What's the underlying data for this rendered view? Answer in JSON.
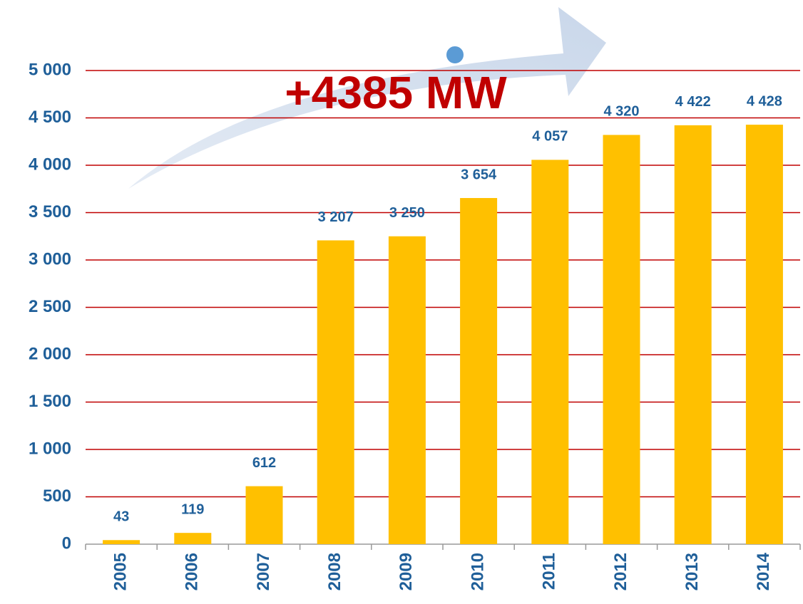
{
  "chart_data": {
    "type": "bar",
    "annotation": "+4385 MW",
    "categories": [
      "2005",
      "2006",
      "2007",
      "2008",
      "2009",
      "2010",
      "2011",
      "2012",
      "2013",
      "2014"
    ],
    "values": [
      43,
      119,
      612,
      3207,
      3250,
      3654,
      4057,
      4320,
      4422,
      4428
    ],
    "value_labels": [
      "43",
      "119",
      "612",
      "3 207",
      "3 250",
      "3 654",
      "4 057",
      "4 320",
      "4 422",
      "4 428"
    ],
    "color": "#ffc000",
    "ylim": [
      0,
      5000
    ],
    "yticks": [
      0,
      500,
      {
        "value": 1000,
        "label": "1 000"
      },
      {
        "value": 1500,
        "label": "1 500"
      },
      {
        "value": 2000,
        "label": "2 000"
      },
      {
        "value": 2500,
        "label": "2 500"
      },
      {
        "value": 3000,
        "label": "3 000"
      },
      {
        "value": 3500,
        "label": "3 500"
      },
      {
        "value": 4000,
        "label": "4 000"
      },
      {
        "value": 4500,
        "label": "4 500"
      },
      {
        "value": 5000,
        "label": "5 000"
      }
    ],
    "grid": true,
    "grid_color": "#c00000"
  }
}
